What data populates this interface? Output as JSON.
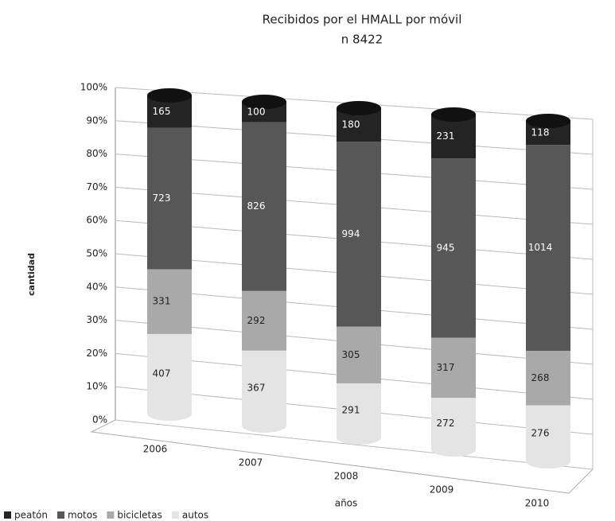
{
  "chart_data": {
    "type": "bar",
    "stacked": "percent",
    "title": "Recibidos por el HMALL por móvil",
    "subtitle": "n 8422",
    "y_label": "cantidad",
    "x_label": "años",
    "categories": [
      "2006",
      "2007",
      "2008",
      "2009",
      "2010"
    ],
    "series": [
      {
        "name": "peatón",
        "color": "#242424",
        "values": [
          165,
          100,
          180,
          231,
          118
        ]
      },
      {
        "name": "motos",
        "color": "#575757",
        "values": [
          723,
          826,
          994,
          945,
          1014
        ]
      },
      {
        "name": "bicicletas",
        "color": "#a9a9a9",
        "values": [
          331,
          292,
          305,
          317,
          268
        ]
      },
      {
        "name": "autos",
        "color": "#e4e4e4",
        "values": [
          407,
          367,
          291,
          272,
          276
        ]
      }
    ],
    "ylim": [
      0,
      100
    ],
    "yticks": [
      {
        "value": 0,
        "label": "0%"
      },
      {
        "value": 10,
        "label": "10%"
      },
      {
        "value": 20,
        "label": "20%"
      },
      {
        "value": 30,
        "label": "30%"
      },
      {
        "value": 40,
        "label": "40%"
      },
      {
        "value": 50,
        "label": "50%"
      },
      {
        "value": 60,
        "label": "60%"
      },
      {
        "value": 70,
        "label": "70%"
      },
      {
        "value": 80,
        "label": "80%"
      },
      {
        "value": 90,
        "label": "90%"
      },
      {
        "value": 100,
        "label": "100%"
      }
    ],
    "grid": true,
    "legend": "bottom-left"
  }
}
